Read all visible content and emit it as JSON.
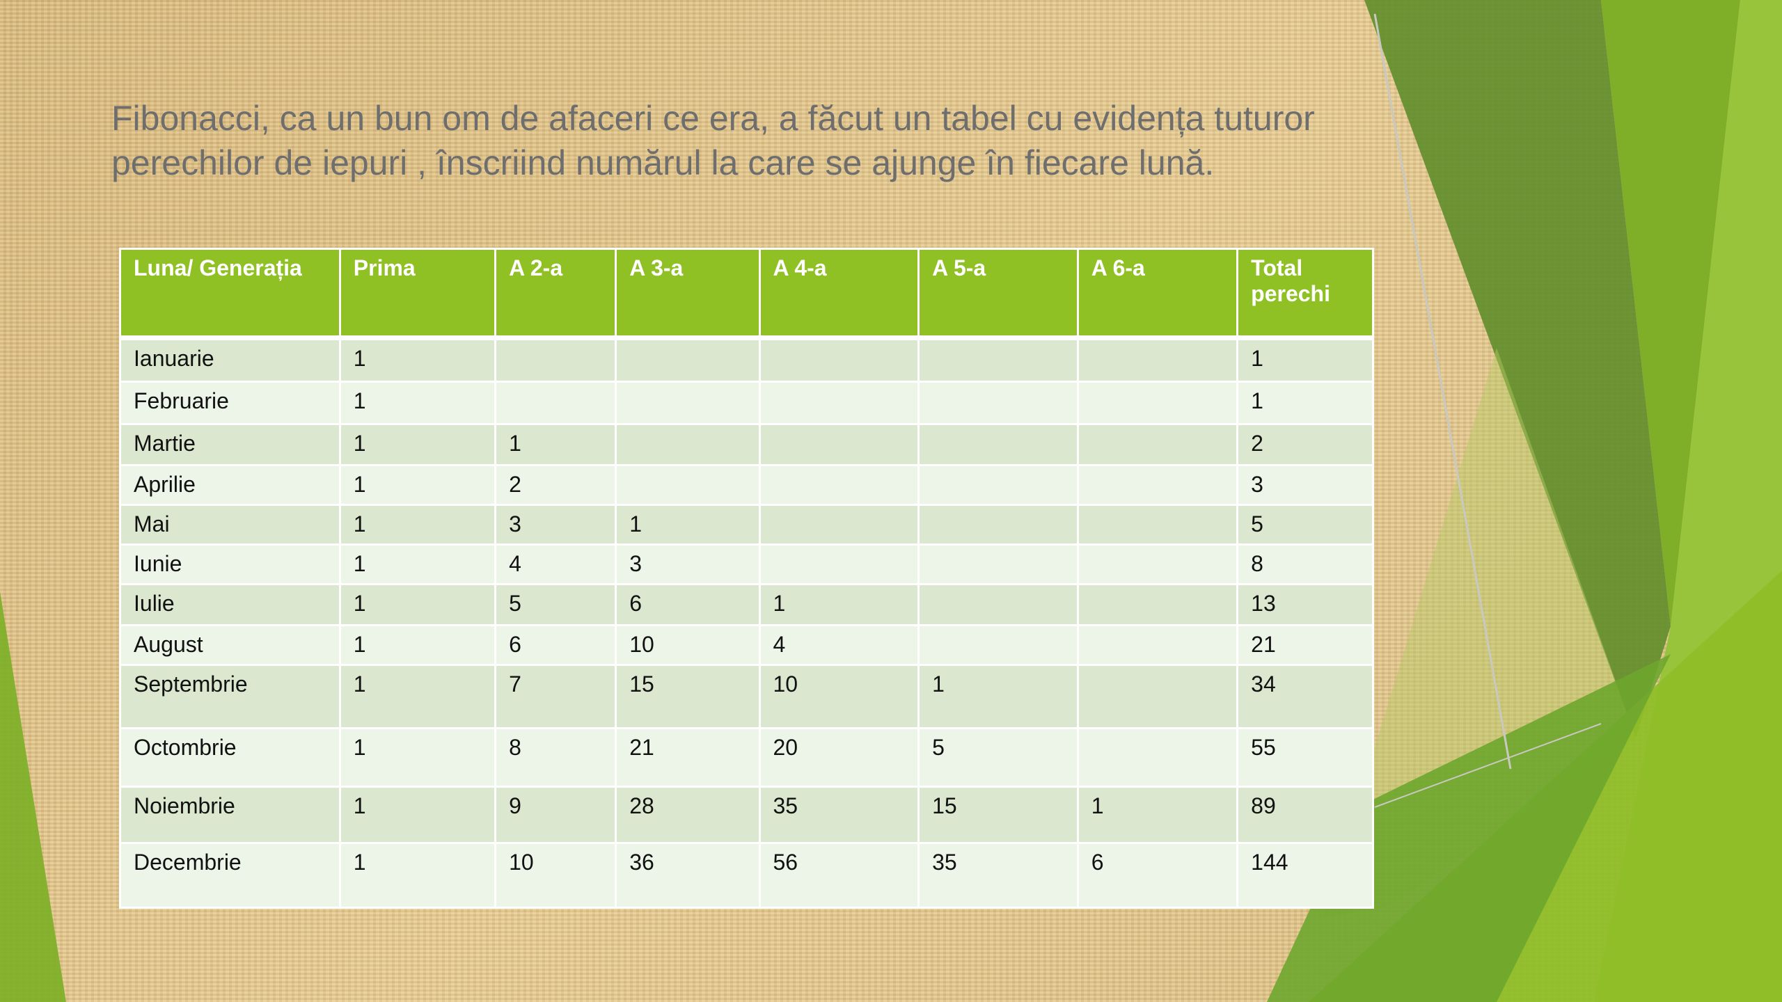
{
  "slide": {
    "title": "Fibonacci, ca un bun om de afaceri ce era, a făcut un tabel cu evidența tuturor perechilor de iepuri , înscriind numărul la care se ajunge în fiecare lună.",
    "colors": {
      "header": "#8fc124",
      "row_odd": "#dbe8cf",
      "row_even": "#edf4e8",
      "title_text": "#6e6e6e"
    }
  },
  "table": {
    "headers": [
      "Luna/ Generația",
      "Prima",
      "A 2-a",
      "A 3-a",
      "A 4-a",
      "A 5-a",
      "A 6-a",
      "Total perechi"
    ],
    "rows": [
      [
        "Ianuarie",
        "1",
        "",
        "",
        "",
        "",
        "",
        "1"
      ],
      [
        "Februarie",
        "1",
        "",
        "",
        "",
        "",
        "",
        "1"
      ],
      [
        "Martie",
        "1",
        "1",
        "",
        "",
        "",
        "",
        "2"
      ],
      [
        "Aprilie",
        "1",
        "2",
        "",
        "",
        "",
        "",
        "3"
      ],
      [
        "Mai",
        "1",
        "3",
        "1",
        "",
        "",
        "",
        "5"
      ],
      [
        "Iunie",
        "1",
        "4",
        "3",
        "",
        "",
        "",
        "8"
      ],
      [
        "Iulie",
        "1",
        "5",
        "6",
        "1",
        "",
        "",
        "13"
      ],
      [
        "August",
        "1",
        "6",
        "10",
        "4",
        "",
        "",
        "21"
      ],
      [
        "Septembrie",
        "1",
        "7",
        "15",
        "10",
        "1",
        "",
        "34"
      ],
      [
        "Octombrie",
        "1",
        "8",
        "21",
        "20",
        "5",
        "",
        "55"
      ],
      [
        "Noiembrie",
        "1",
        "9",
        "28",
        "35",
        "15",
        "1",
        "89"
      ],
      [
        "Decembrie",
        "1",
        "10",
        "36",
        "56",
        "35",
        "6",
        "144"
      ]
    ]
  }
}
